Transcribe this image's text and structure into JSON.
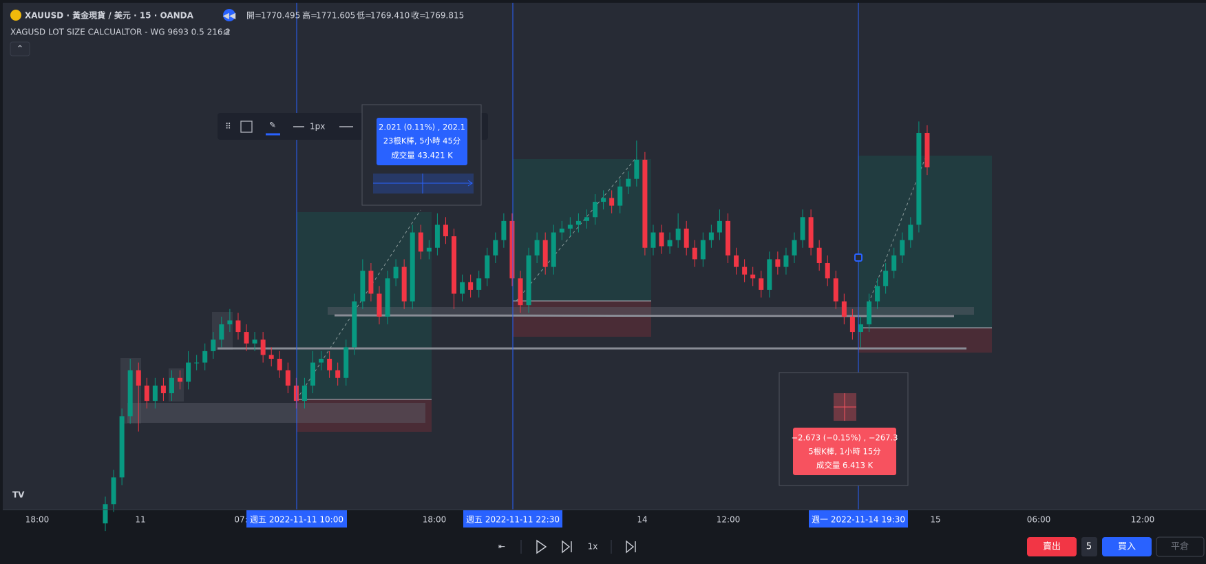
{
  "header": {
    "symbol": "XAUUSD · 黃金現貨 / 美元 · 15 · OANDA",
    "ohlc": [
      {
        "label": "開=",
        "value": "1770.495"
      },
      {
        "label": "高=",
        "value": "1771.605"
      },
      {
        "label": "低=",
        "value": "1769.410"
      },
      {
        "label": "收=",
        "value": "1769.815"
      }
    ]
  },
  "indicator": "XAGUSD LOT SIZE CALCUALTOR - WG 9693 0.5 216.2",
  "toolbar": {
    "width_label": "1px"
  },
  "measures": [
    {
      "lines": [
        "2.021 (0.11%) , 202.1",
        "23根K棒, 5小時 45分",
        "成交量 43.421 K"
      ]
    },
    {
      "lines": [
        "−2.673 (−0.15%) , −267.3",
        "5根K棒, 1小時 15分",
        "成交量 6.413 K"
      ]
    }
  ],
  "time_axis": {
    "labels": [
      "18:00",
      "11",
      "07:",
      "18:00",
      "14",
      "12:00",
      "15",
      "06:00",
      "12:00"
    ],
    "markers": [
      "週五  2022-11-11   10:00",
      "週五  2022-11-11   22:30",
      "週一  2022-11-14   19:30"
    ]
  },
  "replay": {
    "speed": "1x"
  },
  "trade": {
    "sell": "賣出",
    "qty": "5",
    "buy": "買入",
    "close": "平倉"
  },
  "chart": {
    "type": "candlestick",
    "ylim": [
      1765.38,
      1772
    ],
    "up_color": "#089981",
    "down_color": "#f23645",
    "candles": [
      [
        1765.2,
        1765.55,
        1765.1,
        1765.45
      ],
      [
        1765.45,
        1765.9,
        1765.35,
        1765.8
      ],
      [
        1765.8,
        1766.7,
        1765.7,
        1766.6
      ],
      [
        1766.6,
        1767.35,
        1766.5,
        1767.2
      ],
      [
        1767.2,
        1767.3,
        1766.4,
        1767.0
      ],
      [
        1767.0,
        1767.1,
        1766.7,
        1766.8
      ],
      [
        1766.8,
        1767.1,
        1766.7,
        1767.0
      ],
      [
        1767.0,
        1767.1,
        1766.8,
        1766.9
      ],
      [
        1766.9,
        1767.2,
        1766.8,
        1767.1
      ],
      [
        1767.1,
        1767.2,
        1766.95,
        1767.05
      ],
      [
        1767.05,
        1767.45,
        1766.95,
        1767.3
      ],
      [
        1767.3,
        1767.4,
        1767.2,
        1767.3
      ],
      [
        1767.3,
        1767.55,
        1767.2,
        1767.45
      ],
      [
        1767.45,
        1767.7,
        1767.35,
        1767.6
      ],
      [
        1767.6,
        1767.9,
        1767.5,
        1767.8
      ],
      [
        1767.8,
        1768.0,
        1767.7,
        1767.85
      ],
      [
        1767.85,
        1767.95,
        1767.6,
        1767.7
      ],
      [
        1767.7,
        1767.8,
        1767.45,
        1767.55
      ],
      [
        1767.55,
        1767.7,
        1767.45,
        1767.6
      ],
      [
        1767.6,
        1767.7,
        1767.3,
        1767.4
      ],
      [
        1767.4,
        1767.5,
        1767.25,
        1767.35
      ],
      [
        1767.35,
        1767.45,
        1767.1,
        1767.2
      ],
      [
        1767.2,
        1767.3,
        1766.9,
        1767.0
      ],
      [
        1767.0,
        1767.1,
        1766.7,
        1766.8
      ],
      [
        1766.8,
        1767.1,
        1766.7,
        1767.0
      ],
      [
        1767.0,
        1767.45,
        1766.9,
        1767.3
      ],
      [
        1767.3,
        1767.45,
        1767.2,
        1767.35
      ],
      [
        1767.35,
        1767.45,
        1767.1,
        1767.2
      ],
      [
        1767.2,
        1767.3,
        1767.0,
        1767.1
      ],
      [
        1767.1,
        1767.6,
        1767.0,
        1767.5
      ],
      [
        1767.5,
        1768.2,
        1767.4,
        1768.1
      ],
      [
        1768.1,
        1768.65,
        1768.0,
        1768.5
      ],
      [
        1768.5,
        1768.6,
        1768.1,
        1768.2
      ],
      [
        1768.2,
        1768.3,
        1767.8,
        1767.9
      ],
      [
        1767.9,
        1768.5,
        1767.8,
        1768.4
      ],
      [
        1768.4,
        1768.65,
        1768.3,
        1768.55
      ],
      [
        1768.55,
        1768.65,
        1768.0,
        1768.1
      ],
      [
        1768.1,
        1769.1,
        1768.0,
        1769.0
      ],
      [
        1769.0,
        1769.1,
        1768.65,
        1768.75
      ],
      [
        1768.75,
        1768.9,
        1768.65,
        1768.8
      ],
      [
        1768.8,
        1769.25,
        1768.7,
        1769.1
      ],
      [
        1769.1,
        1769.2,
        1768.85,
        1768.95
      ],
      [
        1768.95,
        1769.05,
        1768.0,
        1768.2
      ],
      [
        1768.2,
        1768.45,
        1768.1,
        1768.35
      ],
      [
        1768.35,
        1768.45,
        1768.15,
        1768.25
      ],
      [
        1768.25,
        1768.5,
        1768.15,
        1768.4
      ],
      [
        1768.4,
        1768.8,
        1768.3,
        1768.7
      ],
      [
        1768.7,
        1769.0,
        1768.6,
        1768.9
      ],
      [
        1768.9,
        1769.25,
        1768.8,
        1769.15
      ],
      [
        1769.15,
        1769.25,
        1768.3,
        1768.4
      ],
      [
        1768.4,
        1768.5,
        1767.95,
        1768.05
      ],
      [
        1768.05,
        1768.8,
        1767.95,
        1768.7
      ],
      [
        1768.7,
        1769.0,
        1768.6,
        1768.9
      ],
      [
        1768.9,
        1769.0,
        1768.45,
        1768.55
      ],
      [
        1768.55,
        1769.1,
        1768.45,
        1769.0
      ],
      [
        1769.0,
        1769.15,
        1768.9,
        1769.05
      ],
      [
        1769.05,
        1769.2,
        1768.95,
        1769.1
      ],
      [
        1769.1,
        1769.25,
        1769.0,
        1769.15
      ],
      [
        1769.15,
        1769.3,
        1769.05,
        1769.2
      ],
      [
        1769.2,
        1769.5,
        1769.1,
        1769.4
      ],
      [
        1769.4,
        1769.55,
        1769.3,
        1769.45
      ],
      [
        1769.45,
        1769.55,
        1769.25,
        1769.35
      ],
      [
        1769.35,
        1769.7,
        1769.25,
        1769.6
      ],
      [
        1769.6,
        1769.8,
        1769.5,
        1769.7
      ],
      [
        1769.7,
        1770.2,
        1769.6,
        1769.95
      ],
      [
        1769.95,
        1770.05,
        1768.7,
        1768.8
      ],
      [
        1768.8,
        1769.1,
        1768.7,
        1769.0
      ],
      [
        1769.0,
        1769.1,
        1768.72,
        1768.82
      ],
      [
        1768.82,
        1769.0,
        1768.72,
        1768.9
      ],
      [
        1768.9,
        1769.25,
        1768.8,
        1769.05
      ],
      [
        1769.05,
        1769.15,
        1768.7,
        1768.8
      ],
      [
        1768.8,
        1768.9,
        1768.55,
        1768.65
      ],
      [
        1768.65,
        1769.0,
        1768.55,
        1768.9
      ],
      [
        1768.9,
        1769.1,
        1768.8,
        1769.0
      ],
      [
        1769.0,
        1769.3,
        1768.9,
        1769.15
      ],
      [
        1769.15,
        1769.25,
        1768.6,
        1768.7
      ],
      [
        1768.7,
        1768.8,
        1768.45,
        1768.55
      ],
      [
        1768.55,
        1768.65,
        1768.35,
        1768.45
      ],
      [
        1768.45,
        1768.55,
        1768.3,
        1768.4
      ],
      [
        1768.4,
        1768.5,
        1768.15,
        1768.25
      ],
      [
        1768.25,
        1768.75,
        1768.15,
        1768.65
      ],
      [
        1768.65,
        1768.75,
        1768.45,
        1768.55
      ],
      [
        1768.55,
        1768.8,
        1768.45,
        1768.7
      ],
      [
        1768.7,
        1769.0,
        1768.6,
        1768.9
      ],
      [
        1768.9,
        1769.3,
        1768.8,
        1769.2
      ],
      [
        1769.2,
        1769.3,
        1768.7,
        1768.8
      ],
      [
        1768.8,
        1768.9,
        1768.5,
        1768.6
      ],
      [
        1768.6,
        1768.7,
        1768.3,
        1768.4
      ],
      [
        1768.4,
        1768.5,
        1768.0,
        1768.1
      ],
      [
        1768.1,
        1768.2,
        1767.8,
        1767.9
      ],
      [
        1767.9,
        1768.0,
        1767.6,
        1767.7
      ],
      [
        1767.7,
        1767.9,
        1767.5,
        1767.8
      ],
      [
        1767.8,
        1768.2,
        1767.7,
        1768.1
      ],
      [
        1768.1,
        1768.4,
        1768.0,
        1768.3
      ],
      [
        1768.3,
        1768.6,
        1768.2,
        1768.5
      ],
      [
        1768.5,
        1768.8,
        1768.4,
        1768.7
      ],
      [
        1768.7,
        1769.0,
        1768.6,
        1768.9
      ],
      [
        1768.9,
        1769.2,
        1768.8,
        1769.1
      ],
      [
        1769.1,
        1770.45,
        1769.0,
        1770.3
      ],
      [
        1770.3,
        1770.4,
        1769.75,
        1769.85
      ]
    ]
  }
}
